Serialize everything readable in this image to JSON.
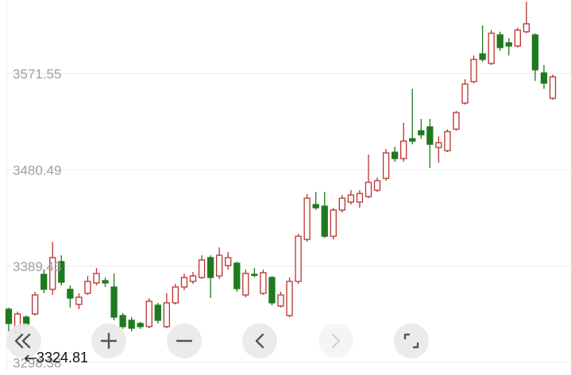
{
  "chart_data": {
    "type": "candlestick",
    "ylim": [
      3290,
      3641
    ],
    "yticks": [
      3571.55,
      3480.49,
      3389.43,
      3298.38
    ],
    "grid": true,
    "up_color": "#b8322f",
    "down_color": "#1f7a1f",
    "low_marker": 3324.81,
    "open": [
      3348.5,
      3326,
      3341,
      3344,
      3381.5,
      3367.3,
      3393.5,
      3367.3,
      3353,
      3363.5,
      3373.3,
      3375.5,
      3369.5,
      3342.5,
      3338,
      3335,
      3332,
      3352.3,
      3332,
      3354.5,
      3369.5,
      3374.8,
      3378.5,
      3397.3,
      3380,
      3389.8,
      3392,
      3362,
      3381.5,
      3363.5,
      3378.5,
      3351.5,
      3342.5,
      3374.8,
      3414.5,
      3447.5,
      3446,
      3417.5,
      3442.3,
      3449.8,
      3449.8,
      3455,
      3461,
      3472.3,
      3497,
      3491,
      3509.8,
      3517.3,
      3521,
      3501.5,
      3498.5,
      3518.8,
      3543.5,
      3563.8,
      3590,
      3581,
      3608,
      3600.5,
      3597.5,
      3611,
      3608,
      3572,
      3548
    ],
    "high": [
      3350,
      3346.3,
      3342.5,
      3365,
      3386,
      3412.3,
      3399.5,
      3371,
      3363.5,
      3380,
      3387.5,
      3378.5,
      3382.3,
      3344.8,
      3341,
      3336.5,
      3359,
      3354.5,
      3363.5,
      3372.5,
      3382.3,
      3383.8,
      3399.5,
      3399.5,
      3407,
      3402.5,
      3393.5,
      3386,
      3387.5,
      3386,
      3380,
      3365,
      3378.5,
      3419.8,
      3457.3,
      3459.5,
      3459.5,
      3444.5,
      3456.5,
      3461,
      3461,
      3494.8,
      3473,
      3500,
      3502.3,
      3524.8,
      3557,
      3528.5,
      3528.5,
      3512,
      3518.8,
      3536,
      3566,
      3588.5,
      3617,
      3612.5,
      3611,
      3605,
      3614.8,
      3639.5,
      3609.5,
      3579.5,
      3570.5
    ],
    "low": [
      3327.5,
      3324.81,
      3332,
      3342.5,
      3363.5,
      3362,
      3371,
      3350,
      3348.5,
      3362,
      3371,
      3369.5,
      3338,
      3329.8,
      3327.5,
      3329.8,
      3330.5,
      3335,
      3330.5,
      3353,
      3366.5,
      3372.5,
      3377,
      3359,
      3377,
      3386,
      3365,
      3359.8,
      3378.5,
      3362,
      3352.3,
      3350,
      3341,
      3372.5,
      3412.3,
      3442.3,
      3416,
      3414.5,
      3440,
      3447.5,
      3444.5,
      3453.5,
      3459.5,
      3470,
      3488,
      3488,
      3504.5,
      3509.8,
      3482,
      3487.3,
      3497,
      3517.3,
      3542,
      3562.3,
      3582.5,
      3579.5,
      3593,
      3588.5,
      3596,
      3609.5,
      3564.5,
      3557,
      3546.5
    ],
    "close": [
      3335,
      3344,
      3333.5,
      3362,
      3367.3,
      3397.3,
      3374,
      3359,
      3359.8,
      3374.8,
      3382.3,
      3373.3,
      3341,
      3332,
      3330.5,
      3332,
      3356,
      3338,
      3354.5,
      3369.5,
      3378.5,
      3380,
      3395,
      3378.5,
      3399.5,
      3397.3,
      3368,
      3382.3,
      3380.5,
      3383,
      3354.5,
      3362,
      3374.8,
      3417.5,
      3453.5,
      3444.5,
      3417.5,
      3442.3,
      3453.5,
      3456.5,
      3458,
      3468.5,
      3470,
      3496.3,
      3491,
      3507.5,
      3507.5,
      3513.5,
      3504.5,
      3506,
      3516.5,
      3534.5,
      3561.5,
      3584.8,
      3584.8,
      3609.5,
      3596,
      3597.5,
      3612.5,
      3618.5,
      3575,
      3562.3,
      3568.3
    ]
  }
}
